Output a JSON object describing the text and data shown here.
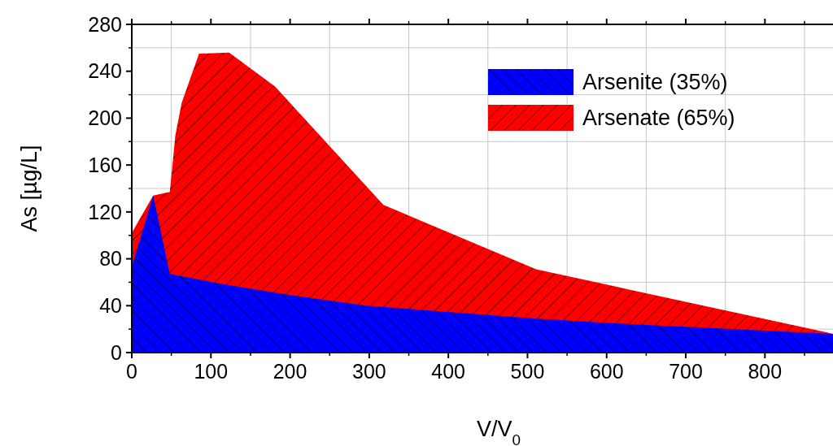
{
  "chart_data": {
    "type": "area",
    "xlabel": "V/V$_{0}$",
    "ylabel": "As [µg/L]",
    "xlim": [
      0,
      886
    ],
    "xticks": [
      0,
      100,
      200,
      300,
      400,
      500,
      600,
      700,
      800
    ],
    "ylim": [
      0,
      280
    ],
    "yticks": [
      0,
      40,
      80,
      120,
      160,
      200,
      240,
      280
    ],
    "grid": true,
    "legend": "top right",
    "series": [
      {
        "name": "Arsenate (65%)",
        "color": "#ff0000",
        "x": [
          0,
          27,
          48,
          51,
          55,
          63,
          85,
          123,
          181,
          318,
          511,
          886
        ],
        "values": [
          102,
          134,
          137,
          157,
          185,
          213,
          255,
          256,
          227,
          126,
          71,
          16
        ]
      },
      {
        "name": "Arsenite (35%)",
        "color": "#0000ff",
        "x": [
          0,
          27,
          48,
          118,
          200,
          296,
          511,
          635,
          886
        ],
        "values": [
          73,
          134,
          67,
          58,
          49,
          40,
          29,
          24,
          16
        ]
      }
    ]
  }
}
